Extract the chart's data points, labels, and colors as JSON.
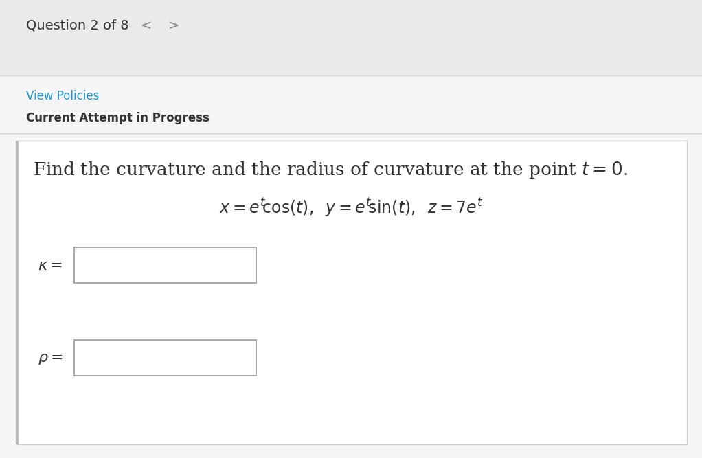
{
  "bg_outer": "#ebebeb",
  "bg_inner": "#f5f5f5",
  "white": "#ffffff",
  "blue_link": "#2196c8",
  "dark_text": "#333333",
  "gray_nav": "#888888",
  "header_text": "Question 2 of 8",
  "nav_left": "<",
  "nav_right": ">",
  "link_text": "View Policies",
  "bold_text": "Current Attempt in Progress",
  "header_fontsize": 14,
  "link_fontsize": 12,
  "bold_fontsize": 12,
  "question_fontsize": 19,
  "equation_fontsize": 17,
  "label_fontsize": 16,
  "separator_color": "#d0d0d0",
  "card_border_color": "#cccccc",
  "box_border_color": "#999999",
  "left_accent_color": "#bbbbbb"
}
